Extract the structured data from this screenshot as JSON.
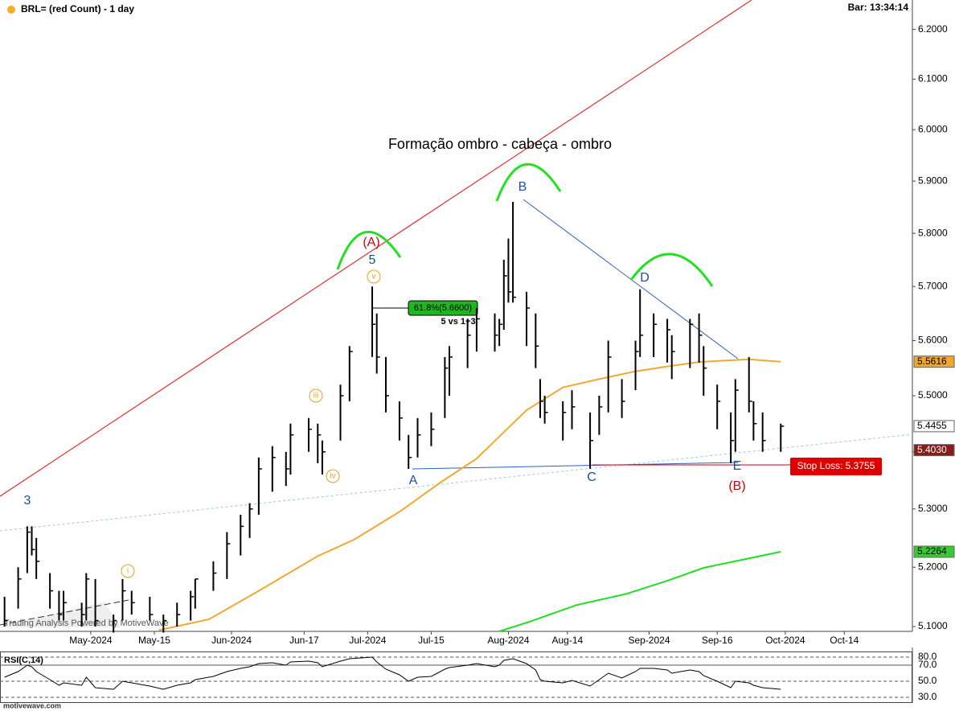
{
  "chart_data": [
    {
      "type": "ohlc",
      "title": "BRL= (red Count) - 1 day",
      "status": "Bar: 13:34:14",
      "footer": "motivewave.com",
      "annotations": [
        "Formação ombro - cabeça - ombro",
        "3",
        "5",
        "(A)",
        "B",
        "A",
        "C",
        "D",
        "E",
        "(B)",
        "i",
        "iii",
        "iv",
        "v",
        "61.8%(5.6600)",
        "5 vs 1+3",
        "Stop Loss: 5.3755",
        "Trading Analysis Powered by MotiveWave"
      ],
      "log_scale": true,
      "grid": false,
      "color": "#000000",
      "x": [
        "2024-04-12",
        "2024-04-15",
        "2024-04-17",
        "2024-04-18",
        "2024-04-19",
        "2024-04-22",
        "2024-04-24",
        "2024-04-25",
        "2024-04-29",
        "2024-04-30",
        "2024-05-02",
        "2024-05-06",
        "2024-05-08",
        "2024-05-10",
        "2024-05-14",
        "2024-05-17",
        "2024-05-20",
        "2024-05-23",
        "2024-05-24",
        "2024-05-28",
        "2024-05-31",
        "2024-06-03",
        "2024-06-05",
        "2024-06-07",
        "2024-06-10",
        "2024-06-13",
        "2024-06-14",
        "2024-06-18",
        "2024-06-20",
        "2024-06-21",
        "2024-06-25",
        "2024-06-27",
        "2024-07-02",
        "2024-07-03",
        "2024-07-05",
        "2024-07-08",
        "2024-07-10",
        "2024-07-12",
        "2024-07-15",
        "2024-07-18",
        "2024-07-19",
        "2024-07-23",
        "2024-07-25",
        "2024-07-29",
        "2024-07-30",
        "2024-07-31",
        "2024-08-01",
        "2024-08-02",
        "2024-08-05",
        "2024-08-07",
        "2024-08-08",
        "2024-08-09",
        "2024-08-13",
        "2024-08-15",
        "2024-08-19",
        "2024-08-21",
        "2024-08-23",
        "2024-08-26",
        "2024-08-29",
        "2024-08-30",
        "2024-09-02",
        "2024-09-05",
        "2024-09-06",
        "2024-09-10",
        "2024-09-12",
        "2024-09-13",
        "2024-09-16",
        "2024-09-19",
        "2024-09-20",
        "2024-09-23",
        "2024-09-24",
        "2024-09-26",
        "2024-09-30"
      ],
      "high": [
        5.15,
        5.2,
        5.27,
        5.27,
        5.25,
        5.19,
        5.16,
        5.16,
        5.14,
        5.19,
        5.18,
        5.12,
        5.18,
        5.16,
        5.15,
        5.12,
        5.14,
        5.16,
        5.18,
        5.21,
        5.26,
        5.29,
        5.31,
        5.39,
        5.41,
        5.4,
        5.45,
        5.46,
        5.45,
        5.42,
        5.52,
        5.59,
        5.7,
        5.65,
        5.57,
        5.49,
        5.43,
        5.46,
        5.47,
        5.57,
        5.59,
        5.64,
        5.66,
        5.65,
        5.64,
        5.75,
        5.79,
        5.86,
        5.69,
        5.65,
        5.53,
        5.5,
        5.49,
        5.51,
        5.47,
        5.5,
        5.6,
        5.53,
        5.6,
        5.695,
        5.65,
        5.64,
        5.61,
        5.64,
        5.65,
        5.59,
        5.52,
        5.47,
        5.53,
        5.57,
        5.49,
        5.47,
        5.45
      ],
      "low": [
        5.1,
        5.13,
        5.19,
        5.22,
        5.18,
        5.13,
        5.11,
        5.11,
        5.1,
        5.11,
        5.1,
        5.09,
        5.11,
        5.12,
        5.11,
        5.09,
        5.1,
        5.11,
        5.13,
        5.16,
        5.18,
        5.22,
        5.25,
        5.29,
        5.33,
        5.34,
        5.36,
        5.4,
        5.38,
        5.36,
        5.42,
        5.49,
        5.57,
        5.54,
        5.47,
        5.42,
        5.37,
        5.39,
        5.41,
        5.46,
        5.5,
        5.55,
        5.58,
        5.58,
        5.59,
        5.62,
        5.67,
        5.67,
        5.59,
        5.55,
        5.46,
        5.45,
        5.42,
        5.44,
        5.37,
        5.43,
        5.47,
        5.46,
        5.51,
        5.57,
        5.57,
        5.56,
        5.53,
        5.55,
        5.56,
        5.5,
        5.44,
        5.38,
        5.4,
        5.47,
        5.42,
        5.4,
        5.4
      ],
      "close": [
        5.11,
        5.18,
        5.26,
        5.23,
        5.21,
        5.16,
        5.12,
        5.14,
        5.12,
        5.18,
        5.11,
        5.11,
        5.16,
        5.14,
        5.12,
        5.11,
        5.12,
        5.15,
        5.18,
        5.19,
        5.24,
        5.27,
        5.3,
        5.37,
        5.39,
        5.37,
        5.43,
        5.44,
        5.43,
        5.4,
        5.5,
        5.58,
        5.63,
        5.57,
        5.5,
        5.46,
        5.39,
        5.43,
        5.44,
        5.55,
        5.57,
        5.61,
        5.64,
        5.61,
        5.63,
        5.72,
        5.69,
        5.68,
        5.66,
        5.59,
        5.49,
        5.47,
        5.47,
        5.48,
        5.42,
        5.48,
        5.57,
        5.49,
        5.58,
        5.61,
        5.63,
        5.62,
        5.58,
        5.63,
        5.61,
        5.55,
        5.49,
        5.42,
        5.51,
        5.49,
        5.45,
        5.42,
        5.4455
      ],
      "series": [
        {
          "color": "#f0a830",
          "x": [
            "2024-05-16",
            "2024-05-27",
            "2024-06-07",
            "2024-06-20",
            "2024-06-28",
            "2024-07-08",
            "2024-07-17",
            "2024-07-25",
            "2024-08-05",
            "2024-08-13",
            "2024-08-21",
            "2024-08-29",
            "2024-09-05",
            "2024-09-12",
            "2024-09-23",
            "2024-09-30"
          ],
          "values": [
            5.094,
            5.112,
            5.16,
            5.219,
            5.247,
            5.295,
            5.346,
            5.388,
            5.474,
            5.515,
            5.53,
            5.544,
            5.553,
            5.561,
            5.566,
            5.5616
          ]
        },
        {
          "color": "#22dd22",
          "x": [
            "2024-07-30",
            "2024-08-06",
            "2024-08-16",
            "2024-08-27",
            "2024-09-05",
            "2024-09-13",
            "2024-09-30"
          ],
          "values": [
            5.092,
            5.109,
            5.136,
            5.155,
            5.177,
            5.199,
            5.2264
          ]
        }
      ],
      "price_labels": [
        {
          "value": 5.5616,
          "label": "5.5616",
          "color": "#f5a623"
        },
        {
          "value": 5.4455,
          "label": "5.4455",
          "color": "#ffffff"
        },
        {
          "value": 5.403,
          "label": "5.4030",
          "color": "#8b1a1a"
        },
        {
          "value": 5.2264,
          "label": "5.2264",
          "color": "#33cc33"
        }
      ],
      "xlim": [
        "2024-04-11",
        "2024-10-29"
      ],
      "xticks": [
        {
          "value": "2024-05-01",
          "label": "May-2024"
        },
        {
          "value": "2024-05-15",
          "label": "May-15"
        },
        {
          "value": "2024-06-01",
          "label": "Jun-2024"
        },
        {
          "value": "2024-06-17",
          "label": "Jun-17"
        },
        {
          "value": "2024-07-01",
          "label": "Jul-2024"
        },
        {
          "value": "2024-07-15",
          "label": "Jul-15"
        },
        {
          "value": "2024-08-01",
          "label": "Aug-2024"
        },
        {
          "value": "2024-08-14",
          "label": "Aug-14"
        },
        {
          "value": "2024-09-01",
          "label": "Sep-2024"
        },
        {
          "value": "2024-09-16",
          "label": "Sep-16"
        },
        {
          "value": "2024-10-01",
          "label": "Oct-2024"
        },
        {
          "value": "2024-10-14",
          "label": "Oct-14"
        }
      ],
      "ylim": [
        5.092,
        6.26
      ],
      "yticks": [
        {
          "value": 5.1,
          "label": "5.1000"
        },
        {
          "value": 5.2,
          "label": "5.2000"
        },
        {
          "value": 5.3,
          "label": "5.3000"
        },
        {
          "value": 5.4,
          "label": "5.4000"
        },
        {
          "value": 5.5,
          "label": "5.5000"
        },
        {
          "value": 5.6,
          "label": "5.6000"
        },
        {
          "value": 5.7,
          "label": "5.7000"
        },
        {
          "value": 5.8,
          "label": "5.8000"
        },
        {
          "value": 5.9,
          "label": "5.9000"
        },
        {
          "value": 6,
          "label": "6.0000"
        },
        {
          "value": 6.1,
          "label": "6.1000"
        },
        {
          "value": 6.2,
          "label": "6.2000"
        }
      ]
    },
    {
      "type": "line",
      "title": "RSI(C,14)",
      "color": "#000000",
      "values": [
        55,
        62,
        70,
        68,
        62,
        52,
        45,
        48,
        45,
        55,
        42,
        40,
        50,
        48,
        44,
        40,
        45,
        48,
        52,
        56,
        62,
        66,
        68,
        72,
        73,
        70,
        74,
        75,
        73,
        68,
        75,
        78,
        80,
        74,
        65,
        58,
        50,
        55,
        56,
        65,
        67,
        70,
        72,
        68,
        70,
        76,
        77,
        78,
        72,
        64,
        52,
        50,
        48,
        51,
        44,
        52,
        60,
        54,
        62,
        66,
        66,
        64,
        60,
        64,
        62,
        57,
        50,
        42,
        50,
        48,
        45,
        42,
        40
      ],
      "ylim": [
        24,
        87
      ],
      "yticks": [
        {
          "value": 80,
          "label": "80.0"
        },
        {
          "value": 70,
          "label": "70.0"
        },
        {
          "value": 50,
          "label": "50.0"
        },
        {
          "value": 30,
          "label": "30.0"
        }
      ]
    }
  ]
}
